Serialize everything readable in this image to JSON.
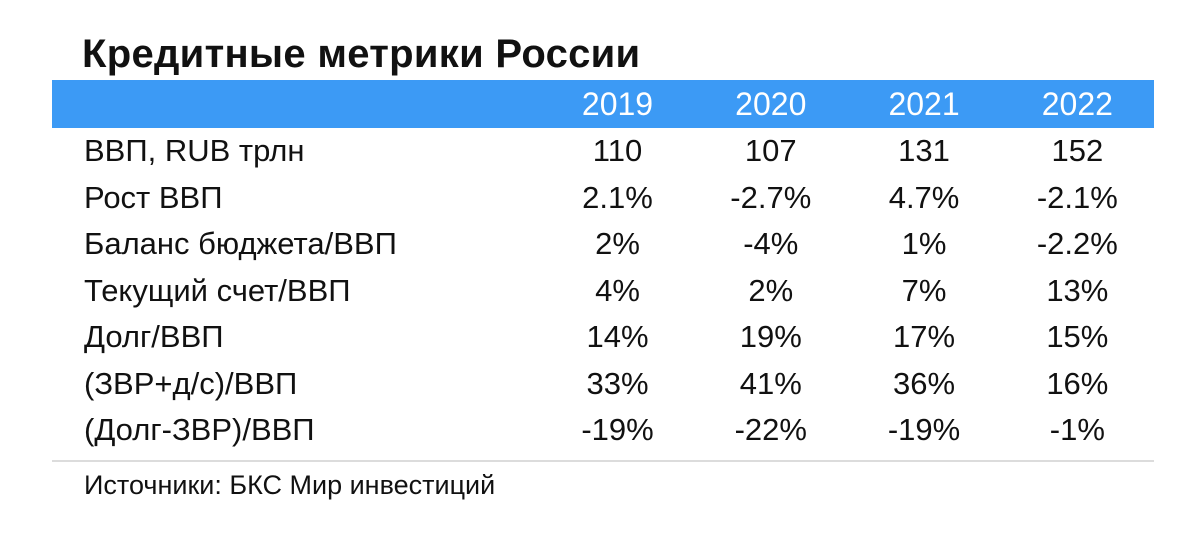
{
  "title": "Кредитные метрики России",
  "table": {
    "header": [
      "",
      "2019",
      "2020",
      "2021",
      "2022"
    ],
    "rows": [
      {
        "label": "ВВП, RUB трлн",
        "values": [
          "110",
          "107",
          "131",
          "152"
        ]
      },
      {
        "label": "Рост ВВП",
        "values": [
          "2.1%",
          "-2.7%",
          "4.7%",
          "-2.1%"
        ]
      },
      {
        "label": "Баланс бюджета/ВВП",
        "values": [
          "2%",
          "-4%",
          "1%",
          "-2.2%"
        ]
      },
      {
        "label": "Текущий счет/ВВП",
        "values": [
          "4%",
          "2%",
          "7%",
          "13%"
        ]
      },
      {
        "label": "Долг/ВВП",
        "values": [
          "14%",
          "19%",
          "17%",
          "15%"
        ]
      },
      {
        "label": "(ЗВР+д/с)/ВВП",
        "values": [
          "33%",
          "41%",
          "36%",
          "16%"
        ]
      },
      {
        "label": "(Долг-ЗВР)/ВВП",
        "values": [
          "-19%",
          "-22%",
          "-19%",
          "-1%"
        ]
      }
    ]
  },
  "source": "Источники: БКС Мир инвестиций",
  "colors": {
    "header_background": "#3c9af5",
    "header_text": "#ffffff",
    "body_text": "#111111",
    "rule": "#dcdcdc"
  }
}
